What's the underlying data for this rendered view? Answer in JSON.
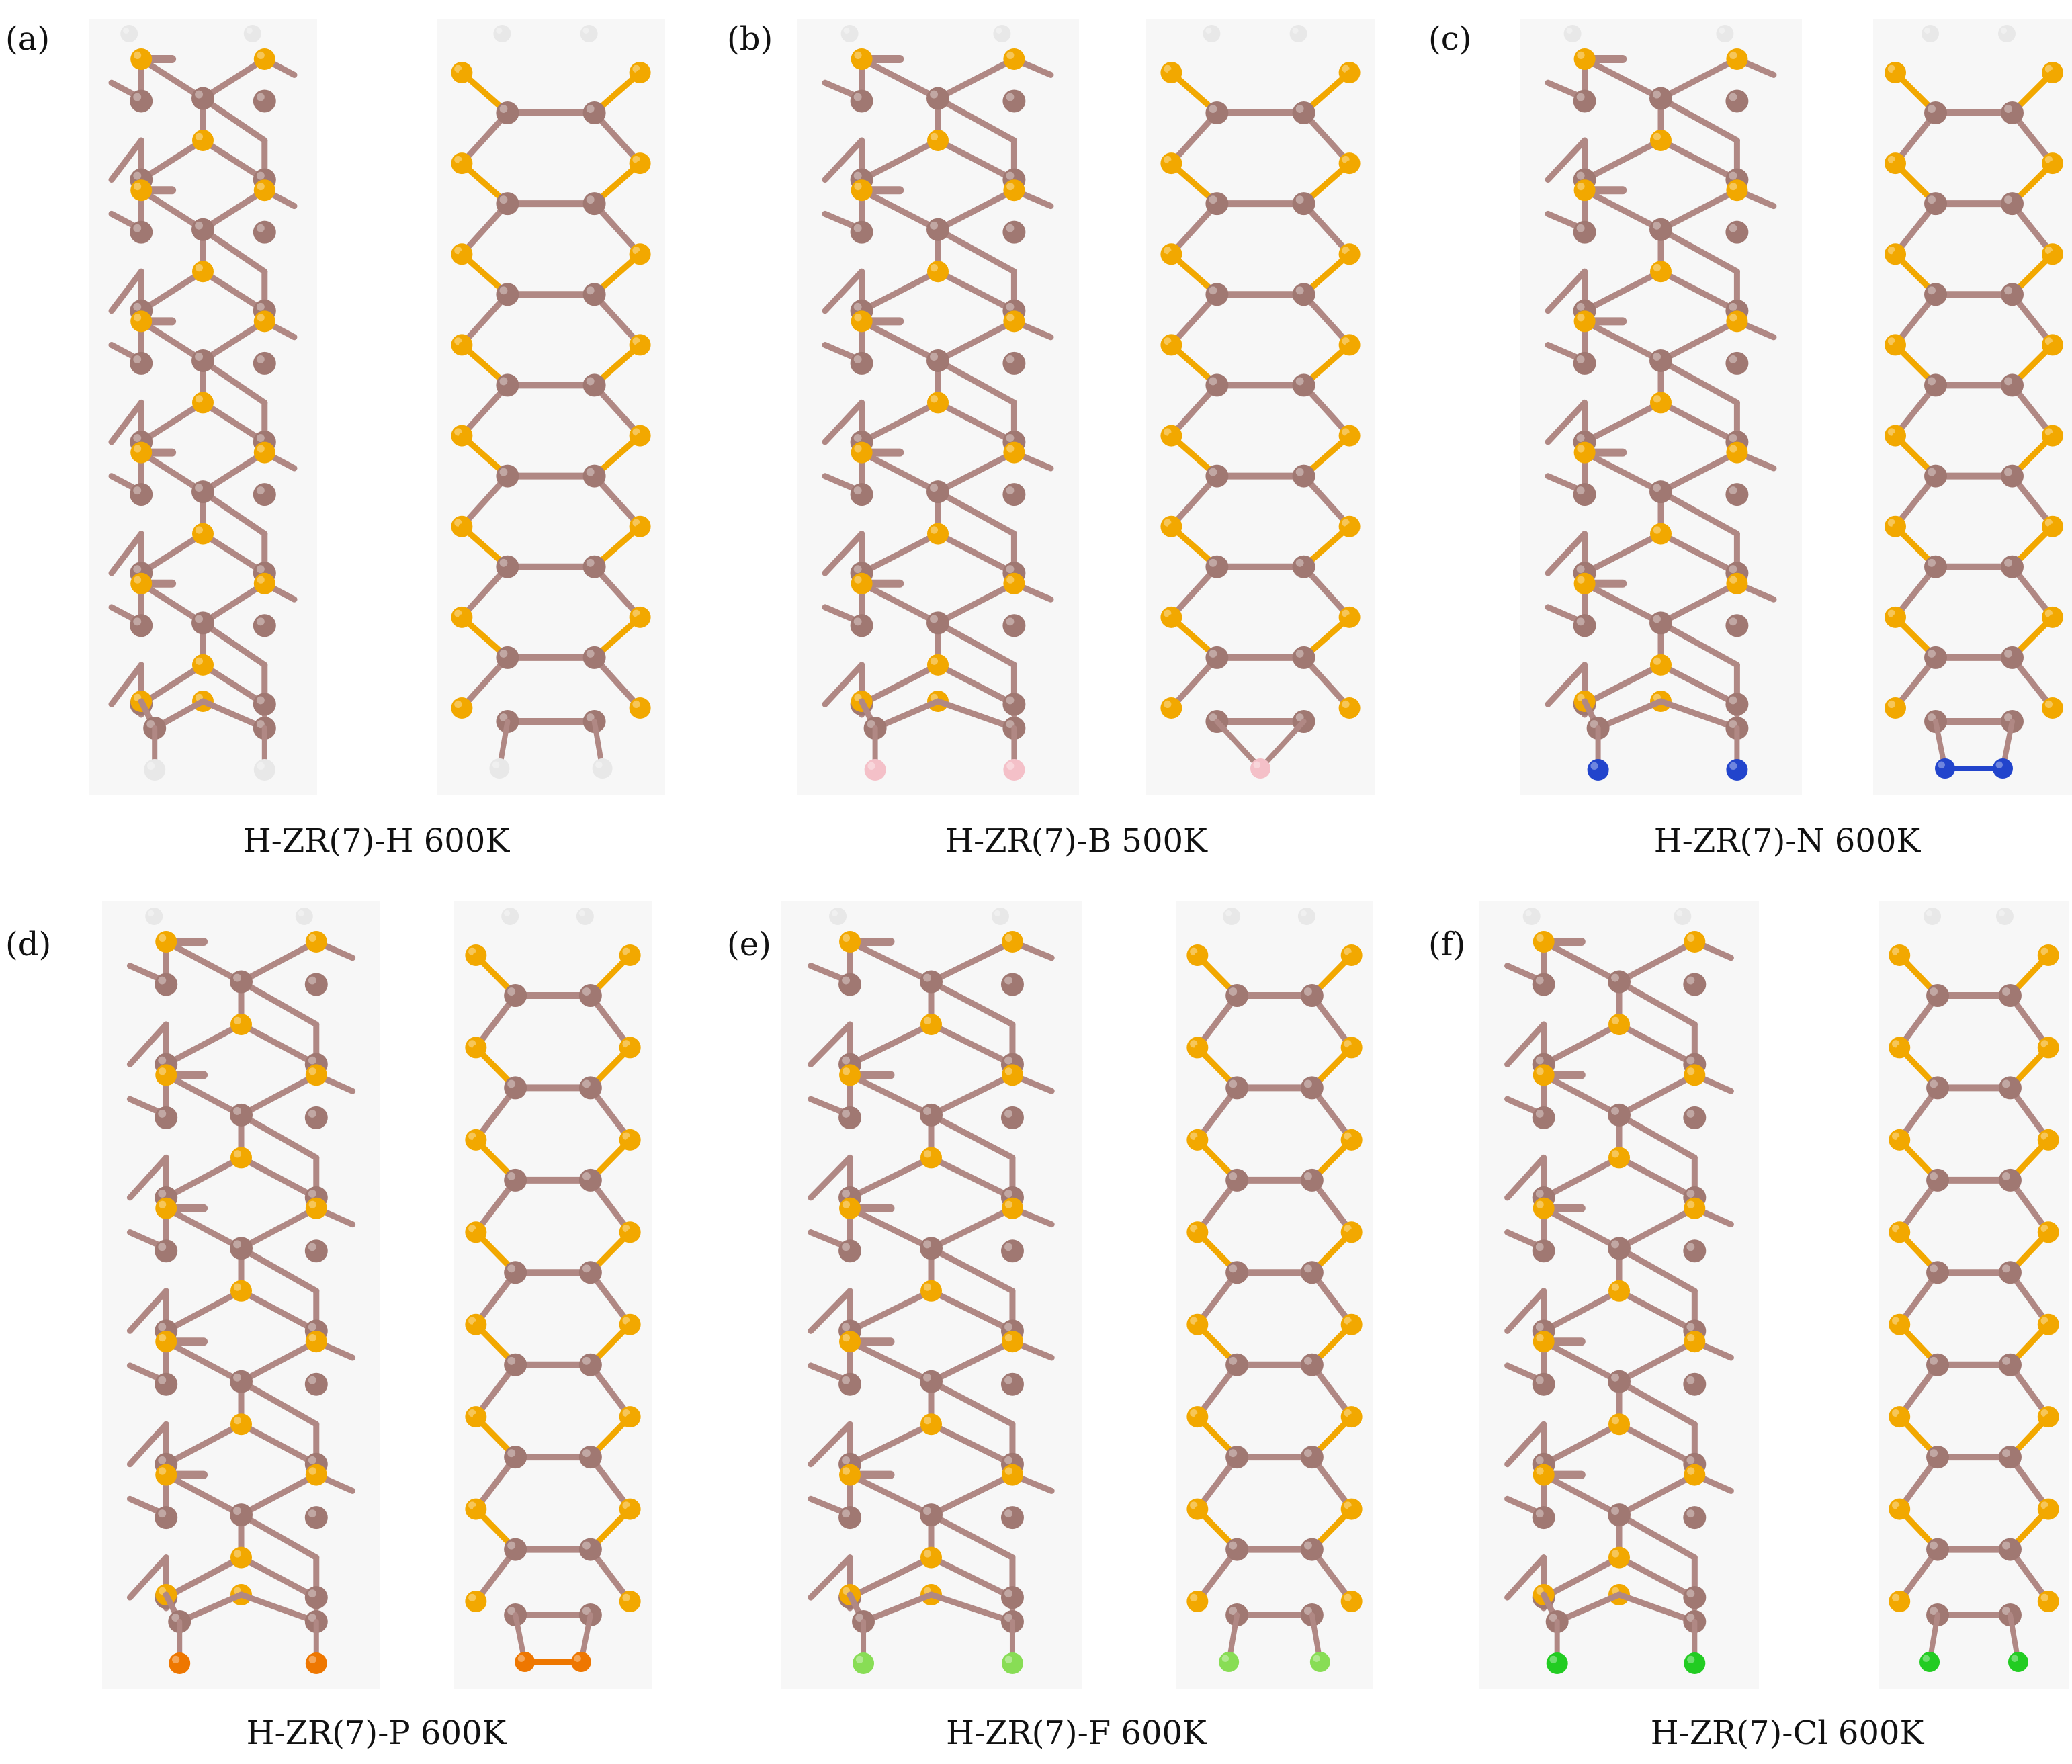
{
  "panels": [
    {
      "id": "a",
      "label": "(a)",
      "caption": "H-ZR(7)-H 600K",
      "top_atom": "H",
      "bottom_atom": "H"
    },
    {
      "id": "b",
      "label": "(b)",
      "caption": "H-ZR(7)-B 500K",
      "top_atom": "H",
      "bottom_atom": "B"
    },
    {
      "id": "c",
      "label": "(c)",
      "caption": "H-ZR(7)-N 600K",
      "top_atom": "H",
      "bottom_atom": "N"
    },
    {
      "id": "d",
      "label": "(d)",
      "caption": "H-ZR(7)-P 600K",
      "top_atom": "H",
      "bottom_atom": "P"
    },
    {
      "id": "e",
      "label": "(e)",
      "caption": "H-ZR(7)-F 600K",
      "top_atom": "H",
      "bottom_atom": "F"
    },
    {
      "id": "f",
      "label": "(f)",
      "caption": "H-ZR(7)-Cl 600K",
      "top_atom": "H",
      "bottom_atom": "Cl"
    }
  ],
  "atom_colors": {
    "C": "#A07872",
    "S": "#F2A800",
    "H": "#E8E8E8",
    "B": "#F4C0C8",
    "N": "#2244CC",
    "P": "#EE7700",
    "F": "#88DD55",
    "Cl": "#22CC22"
  },
  "colors": {
    "background": "#F7F7F7",
    "bond_c": "#B08884",
    "bond_s": "#F2A800"
  }
}
